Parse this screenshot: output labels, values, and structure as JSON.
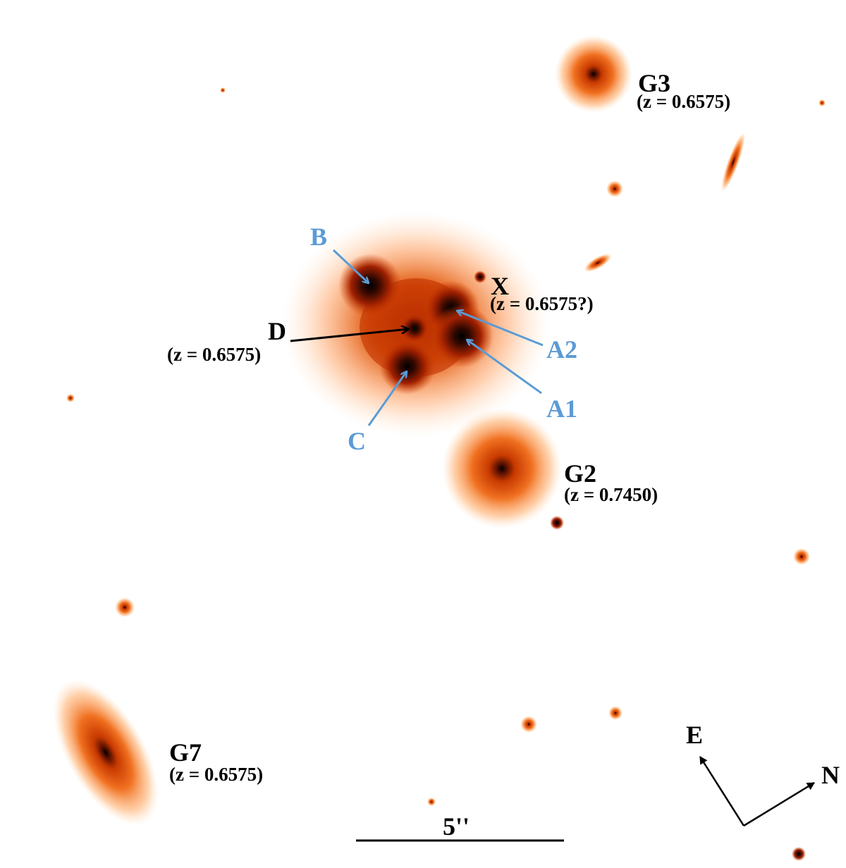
{
  "colors": {
    "label_blue": "#5b9bd5",
    "label_black": "#000000",
    "colormap": [
      "#000000",
      "#8b1a00",
      "#d94400",
      "#ff8c30",
      "#ffd0a0",
      "#ffffff"
    ]
  },
  "images": {
    "B": {
      "name": "B"
    },
    "A1": {
      "name": "A1"
    },
    "A2": {
      "name": "A2"
    },
    "C": {
      "name": "C"
    }
  },
  "objects": {
    "D": {
      "name": "D",
      "redshift": "(z = 0.6575)"
    },
    "X": {
      "name": "X",
      "redshift": "(z = 0.6575?)"
    },
    "G2": {
      "name": "G2",
      "redshift": "(z = 0.7450)"
    },
    "G3": {
      "name": "G3",
      "redshift": "(z = 0.6575)"
    },
    "G7": {
      "name": "G7",
      "redshift": "(z = 0.6575)"
    }
  },
  "scale_bar": {
    "label": "5''"
  },
  "compass": {
    "east": "E",
    "north": "N"
  }
}
